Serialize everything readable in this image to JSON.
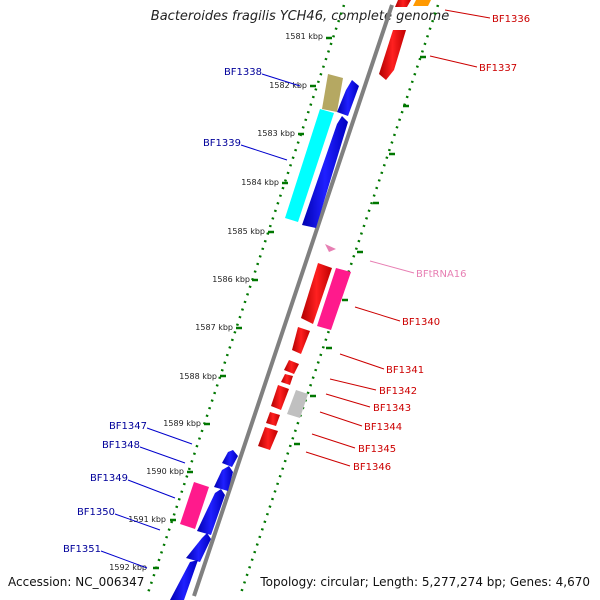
{
  "title": "Bacteroides fragilis YCH46, complete genome",
  "footer": {
    "accession": "Accession: NC_006347",
    "summary": "Topology: circular; Length: 5,277,274 bp; Genes: 4,670"
  },
  "ticks": [
    "1581 kbp",
    "1582 kbp",
    "1583 kbp",
    "1584 kbp",
    "1585 kbp",
    "1586 kbp",
    "1587 kbp",
    "1588 kbp",
    "1589 kbp",
    "1590 kbp",
    "1591 kbp",
    "1592 kbp"
  ],
  "genes_left": [
    "BF1338",
    "BF1339",
    "BF1347",
    "BF1348",
    "BF1349",
    "BF1350",
    "BF1351"
  ],
  "genes_right": [
    "BF1336",
    "BF1337",
    "BF1340",
    "BF1341",
    "BF1342",
    "BF1343",
    "BF1344",
    "BF1345",
    "BF1346"
  ],
  "rna_genes": [
    "BFtRNA16"
  ],
  "colors": {
    "backbone": "#808080",
    "forward_strand": "#0000ff",
    "reverse_strand": "#ff0000",
    "tick_dots": "#007700",
    "label_left": "#00009a",
    "label_right": "#cc0000",
    "rna": "#e77fb3",
    "cyan": "#00ffff",
    "khaki": "#b5a862",
    "magenta": "#ff1a8c",
    "gray_feature": "#c0c0c0",
    "orange": "#ff9900"
  }
}
